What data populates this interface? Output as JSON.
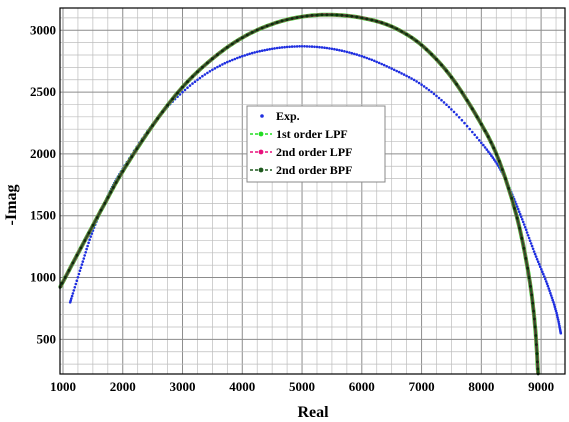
{
  "chart_data": {
    "type": "line",
    "xlabel": "Real",
    "ylabel": "-Imag",
    "xlim": [
      950,
      9400
    ],
    "ylim": [
      220,
      3180
    ],
    "x_ticks": [
      1000,
      2000,
      3000,
      4000,
      5000,
      6000,
      7000,
      8000,
      9000
    ],
    "y_ticks": [
      500,
      1000,
      1500,
      2000,
      2500,
      3000
    ],
    "x_minor_step": 250,
    "y_minor_step": 100,
    "grid": true,
    "legend_position": "center",
    "series": [
      {
        "name": "Exp.",
        "color": "#1f2fe0",
        "style": "dots",
        "points": [
          [
            1120,
            800
          ],
          [
            1300,
            1080
          ],
          [
            1500,
            1380
          ],
          [
            1750,
            1660
          ],
          [
            2000,
            1880
          ],
          [
            2500,
            2240
          ],
          [
            3000,
            2500
          ],
          [
            3500,
            2680
          ],
          [
            4000,
            2790
          ],
          [
            4500,
            2850
          ],
          [
            5000,
            2870
          ],
          [
            5500,
            2850
          ],
          [
            6000,
            2790
          ],
          [
            6500,
            2690
          ],
          [
            7000,
            2560
          ],
          [
            7500,
            2360
          ],
          [
            8000,
            2090
          ],
          [
            8300,
            1890
          ],
          [
            8500,
            1690
          ],
          [
            8700,
            1450
          ],
          [
            8900,
            1190
          ],
          [
            9100,
            950
          ],
          [
            9250,
            730
          ],
          [
            9330,
            550
          ]
        ]
      },
      {
        "name": "1st order LPF",
        "color": "#22dd22",
        "style": "line-marker",
        "points": [
          [
            950,
            920
          ],
          [
            1300,
            1240
          ],
          [
            1700,
            1600
          ],
          [
            2000,
            1860
          ],
          [
            2500,
            2230
          ],
          [
            3000,
            2540
          ],
          [
            3500,
            2770
          ],
          [
            4000,
            2940
          ],
          [
            4500,
            3050
          ],
          [
            5000,
            3110
          ],
          [
            5500,
            3125
          ],
          [
            6000,
            3100
          ],
          [
            6500,
            3030
          ],
          [
            7000,
            2880
          ],
          [
            7500,
            2620
          ],
          [
            8000,
            2240
          ],
          [
            8300,
            1940
          ],
          [
            8600,
            1480
          ],
          [
            8800,
            1000
          ],
          [
            8900,
            600
          ],
          [
            8950,
            220
          ]
        ]
      },
      {
        "name": "2nd order LPF",
        "color": "#e8107c",
        "style": "line-marker",
        "points": [
          [
            950,
            920
          ],
          [
            1300,
            1240
          ],
          [
            1700,
            1600
          ],
          [
            2000,
            1860
          ],
          [
            2500,
            2230
          ],
          [
            3000,
            2540
          ],
          [
            3500,
            2770
          ],
          [
            4000,
            2940
          ],
          [
            4500,
            3050
          ],
          [
            5000,
            3110
          ],
          [
            5500,
            3125
          ],
          [
            6000,
            3100
          ],
          [
            6500,
            3030
          ],
          [
            7000,
            2880
          ],
          [
            7500,
            2620
          ],
          [
            8000,
            2240
          ],
          [
            8300,
            1940
          ],
          [
            8600,
            1480
          ],
          [
            8800,
            1000
          ],
          [
            8900,
            600
          ],
          [
            8950,
            220
          ]
        ]
      },
      {
        "name": "2nd order BPF",
        "color": "#1f5a1f",
        "style": "line-marker",
        "points": [
          [
            950,
            920
          ],
          [
            1300,
            1240
          ],
          [
            1700,
            1600
          ],
          [
            2000,
            1860
          ],
          [
            2500,
            2230
          ],
          [
            3000,
            2540
          ],
          [
            3500,
            2770
          ],
          [
            4000,
            2940
          ],
          [
            4500,
            3050
          ],
          [
            5000,
            3110
          ],
          [
            5500,
            3125
          ],
          [
            6000,
            3100
          ],
          [
            6500,
            3030
          ],
          [
            7000,
            2880
          ],
          [
            7500,
            2620
          ],
          [
            8000,
            2240
          ],
          [
            8300,
            1940
          ],
          [
            8600,
            1480
          ],
          [
            8800,
            1000
          ],
          [
            8900,
            600
          ],
          [
            8950,
            220
          ]
        ]
      }
    ]
  }
}
